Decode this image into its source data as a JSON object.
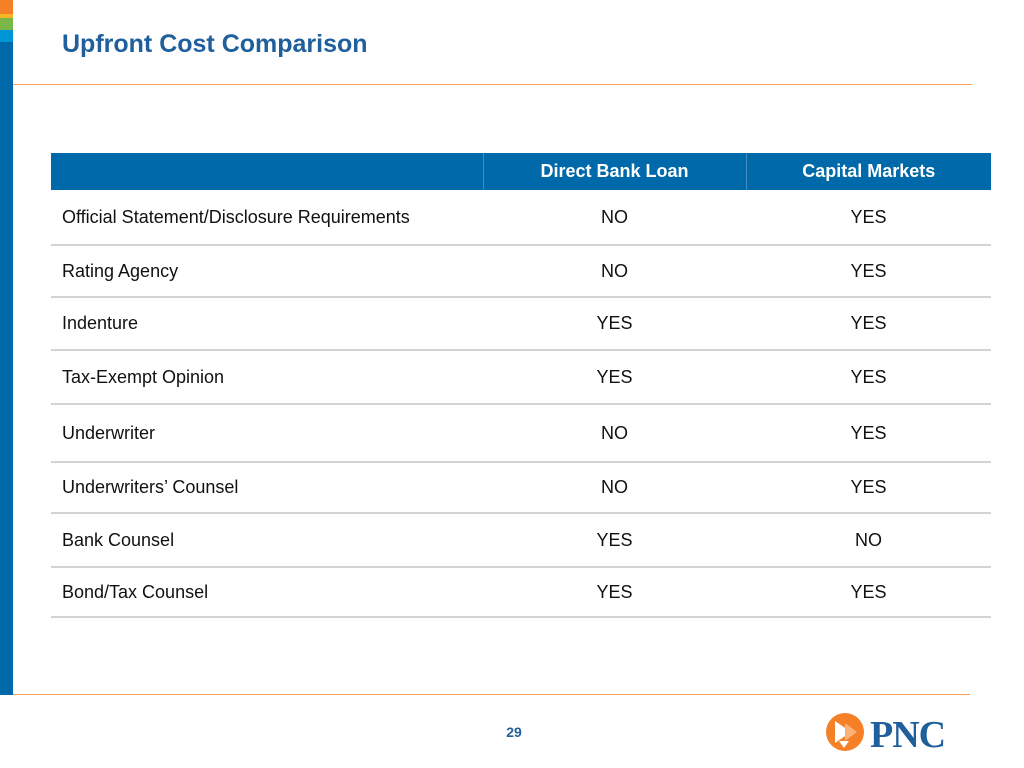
{
  "slide": {
    "title": "Upfront Cost Comparison",
    "page_number": "29"
  },
  "table": {
    "columns": [
      "",
      "Direct Bank Loan",
      "Capital Markets"
    ],
    "rows": [
      {
        "label": "Official Statement/Disclosure Requirements",
        "direct_bank_loan": "NO",
        "capital_markets": "YES"
      },
      {
        "label": "Rating Agency",
        "direct_bank_loan": "NO",
        "capital_markets": "YES"
      },
      {
        "label": "Indenture",
        "direct_bank_loan": "YES",
        "capital_markets": "YES"
      },
      {
        "label": "Tax-Exempt Opinion",
        "direct_bank_loan": "YES",
        "capital_markets": "YES"
      },
      {
        "label": "Underwriter",
        "direct_bank_loan": "NO",
        "capital_markets": "YES"
      },
      {
        "label": "Underwriters’ Counsel",
        "direct_bank_loan": "NO",
        "capital_markets": "YES"
      },
      {
        "label": "Bank Counsel",
        "direct_bank_loan": "YES",
        "capital_markets": "NO"
      },
      {
        "label": "Bond/Tax Counsel",
        "direct_bank_loan": "YES",
        "capital_markets": "YES"
      }
    ]
  },
  "logo": {
    "text": "PNC",
    "icon": "pnc-logo-icon"
  },
  "colors": {
    "brand_blue": "#0069aa",
    "title_blue": "#1f5f9c",
    "accent_orange": "#f58025",
    "accent_green": "#7ab648",
    "accent_cyan": "#0095d6",
    "rule_orange": "#f5a05a"
  }
}
